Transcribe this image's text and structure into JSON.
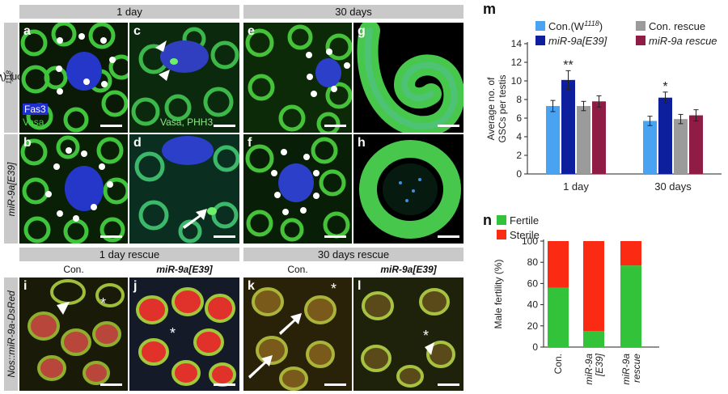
{
  "headers": {
    "day1": "1 day",
    "day30": "30 days",
    "rescue1": "1 day rescue",
    "rescue30": "30 days rescue"
  },
  "subheaders": {
    "i": "Con.",
    "j": "miR-9a[E39]",
    "k": "Con.",
    "l": "miR-9a[E39]"
  },
  "row_labels": {
    "con": "Con. (W",
    "con_sup": "1118",
    "con_close": ")",
    "mut": "miR-9a[E39]",
    "rescue": "Nos::miR-9a-DsRed"
  },
  "panel_letters": [
    "a",
    "b",
    "c",
    "d",
    "e",
    "f",
    "g",
    "h",
    "i",
    "j",
    "k",
    "l"
  ],
  "stain_labels": {
    "fas3": "Fas3",
    "vasa": "Vasa",
    "vasa_phh3": "Vasa, PHH3"
  },
  "figure_letters": {
    "m": "m",
    "n": "n"
  },
  "chart_data": [
    {
      "type": "bar",
      "panel": "m",
      "categories": [
        "1 day",
        "30 days"
      ],
      "ylabel": "Average no. of GSCs per testis",
      "ylim": [
        0,
        14
      ],
      "yticks": [
        0,
        2,
        4,
        6,
        8,
        10,
        12,
        14
      ],
      "legend_position": "top",
      "series": [
        {
          "name": "Con.(W",
          "name_sup": "1118",
          "name_close": ")",
          "color": "#4aa3f0",
          "values": [
            7.3,
            5.7
          ],
          "errors": [
            0.6,
            0.5
          ]
        },
        {
          "name": "miR-9a[E39]",
          "color": "#0e1f9e",
          "values": [
            10.1,
            8.2
          ],
          "errors": [
            1.0,
            0.6
          ]
        },
        {
          "name": "Con. rescue",
          "color": "#9b9b9b",
          "values": [
            7.3,
            5.9
          ],
          "errors": [
            0.5,
            0.5
          ]
        },
        {
          "name": "miR-9a rescue",
          "color": "#8e1c44",
          "values": [
            7.8,
            6.3
          ],
          "errors": [
            0.6,
            0.6
          ]
        }
      ],
      "annotations": [
        {
          "category": "1 day",
          "series": "miR-9a[E39]",
          "text": "**"
        },
        {
          "category": "30 days",
          "series": "miR-9a[E39]",
          "text": "*"
        }
      ]
    },
    {
      "type": "bar",
      "stacked": true,
      "panel": "n",
      "categories": [
        "Con.",
        "miR-9a [E39]",
        "miR-9a rescue"
      ],
      "ylabel": "Male fertility (%)",
      "ylim": [
        0,
        100
      ],
      "yticks": [
        0,
        20,
        40,
        60,
        80,
        100
      ],
      "legend_position": "top-left",
      "series": [
        {
          "name": "Fertile",
          "color": "#33c33a",
          "values": [
            56,
            15,
            77
          ]
        },
        {
          "name": "Sterile",
          "color": "#fb2a12",
          "values": [
            44,
            85,
            23
          ]
        }
      ]
    }
  ]
}
